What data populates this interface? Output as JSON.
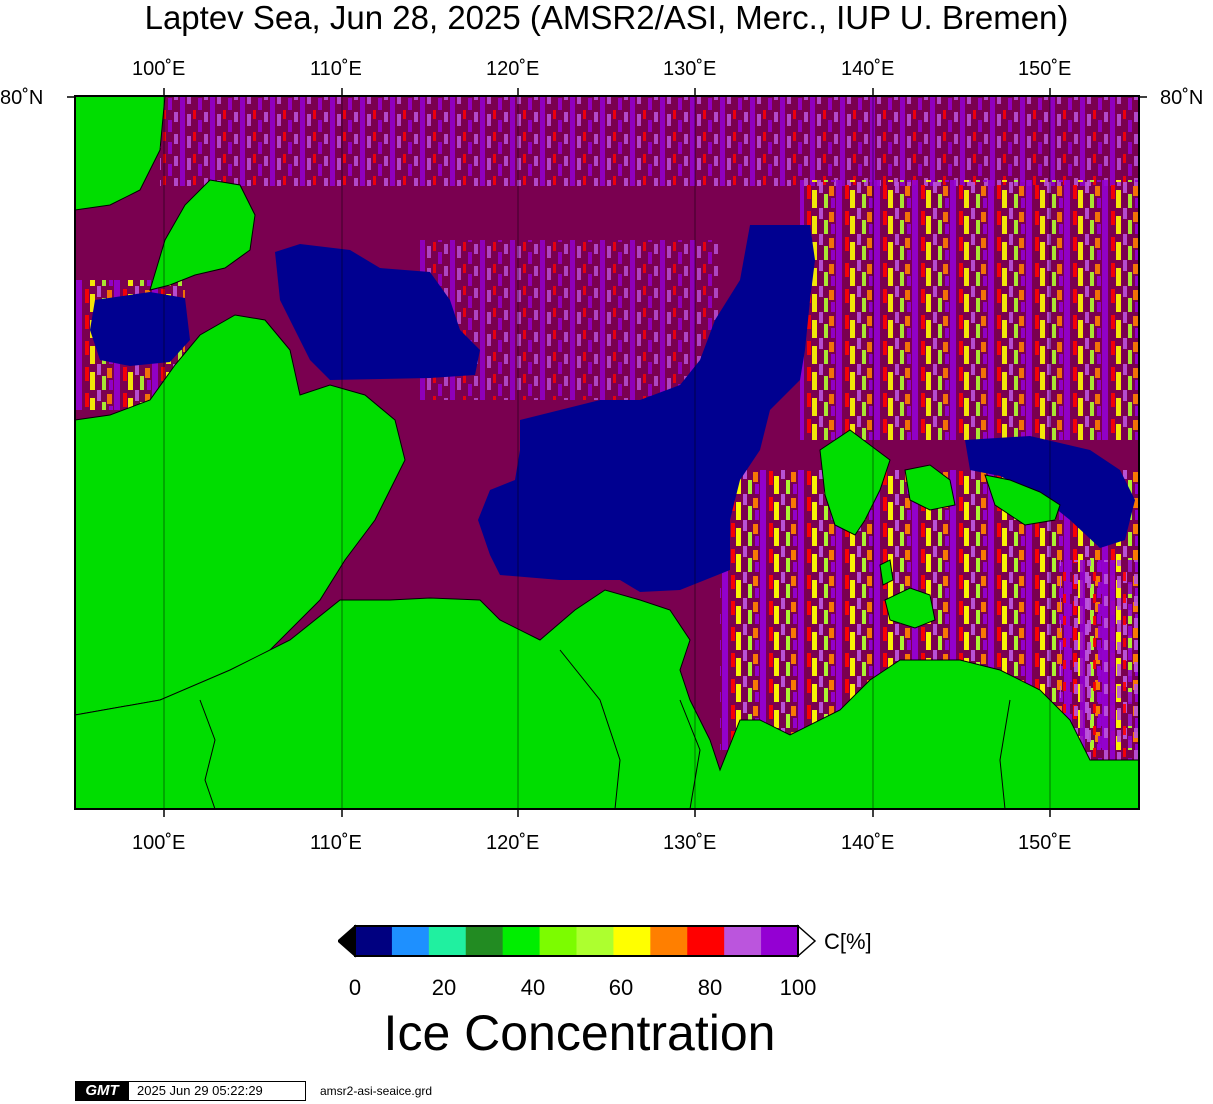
{
  "title": "Laptev Sea, Jun 28, 2025 (AMSR2/ASI, Merc., IUP U. Bremen)",
  "lon_labels": [
    "100˚E",
    "110˚E",
    "120˚E",
    "130˚E",
    "140˚E",
    "150˚E"
  ],
  "lat_label": "80˚N",
  "colorbar": {
    "colors": [
      "#000080",
      "#1e90ff",
      "#20f0a0",
      "#228b22",
      "#00ee00",
      "#7cfc00",
      "#adff2f",
      "#ffff00",
      "#ff7f00",
      "#ff0000",
      "#bb55dd",
      "#9400d3"
    ],
    "ticks": [
      "0",
      "20",
      "40",
      "60",
      "80",
      "100"
    ],
    "unit": "C[%]",
    "label": "Ice Concentration"
  },
  "land_color": "#00dd00",
  "open_water_color": "#7a0050",
  "low_ice_color": "#000090",
  "footer": {
    "logo": "GMT",
    "timestamp": "2025 Jun 29 05:22:29",
    "grid_file": "amsr2-asi-seaice.grd"
  }
}
